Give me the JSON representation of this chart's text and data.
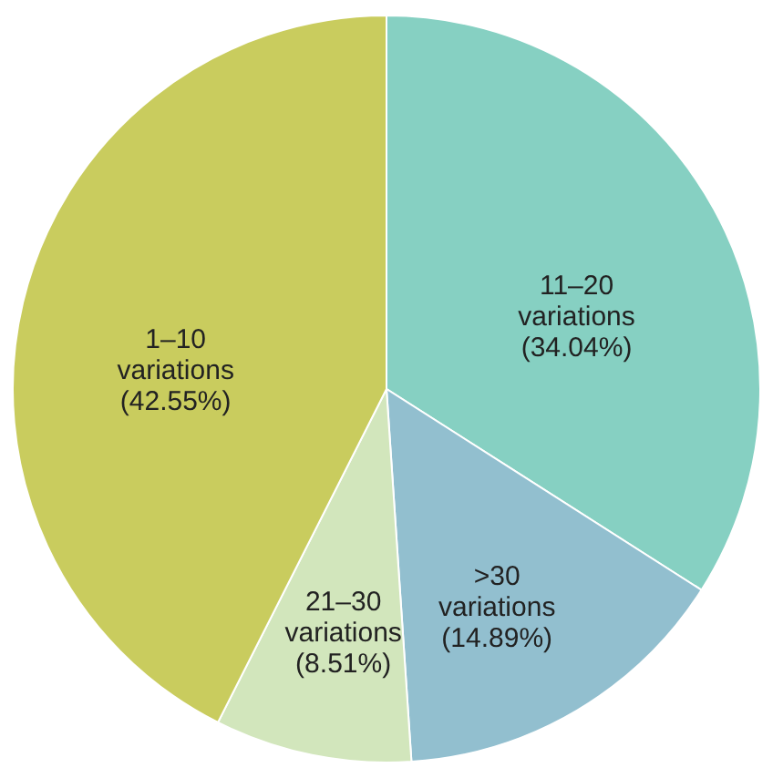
{
  "chart_data": {
    "type": "pie",
    "categories": [
      "11–20 variations",
      ">30 variations",
      "21–30 variations",
      "1–10 variations"
    ],
    "values": [
      34.04,
      14.89,
      8.51,
      42.55
    ],
    "colors": [
      "#86d0c2",
      "#92bfcf",
      "#d2e6bc",
      "#c9cc5e"
    ],
    "value_labels": [
      "(34.04%)",
      "(14.89%)",
      "(8.51%)",
      "(42.55%)"
    ],
    "legend": false
  }
}
